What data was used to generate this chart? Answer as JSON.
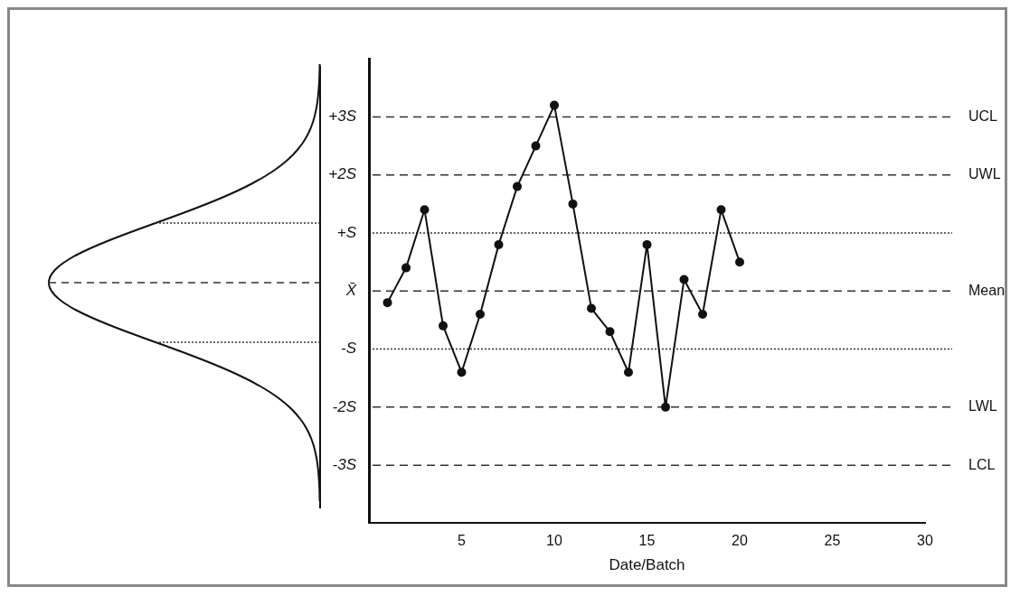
{
  "chart_data": {
    "type": "line",
    "xlabel": "Date/Batch",
    "x": [
      1,
      2,
      3,
      4,
      5,
      6,
      7,
      8,
      9,
      10,
      11,
      12,
      13,
      14,
      15,
      16,
      17,
      18,
      19,
      20
    ],
    "series": [
      {
        "color": "#111111",
        "values": [
          -0.2,
          0.4,
          1.4,
          -0.6,
          -1.4,
          -0.4,
          0.8,
          1.8,
          2.5,
          3.2,
          1.5,
          -0.3,
          -0.7,
          -1.4,
          0.8,
          -2.0,
          0.2,
          -0.4,
          1.4,
          0.5
        ]
      }
    ],
    "marker": "circle",
    "line_style": "solid",
    "grid": false,
    "legend": false,
    "xlim": [
      0,
      30
    ],
    "xticks": [
      5,
      10,
      15,
      20,
      25,
      30
    ],
    "ylim": [
      -4,
      4
    ],
    "yticks": [
      {
        "value": -3,
        "label": "-3S"
      },
      {
        "value": -2,
        "label": "-2S"
      },
      {
        "value": -1,
        "label": "-S"
      },
      {
        "value": 0,
        "label": "X̄"
      },
      {
        "value": 1,
        "label": "+S"
      },
      {
        "value": 2,
        "label": "+2S"
      },
      {
        "value": 3,
        "label": "+3S"
      }
    ],
    "ref_lines": [
      {
        "axis": "y",
        "value": 3,
        "label": "UCL",
        "line_style": "dashed"
      },
      {
        "axis": "y",
        "value": 2,
        "label": "UWL",
        "line_style": "dashed"
      },
      {
        "axis": "y",
        "value": 1,
        "label": null,
        "line_style": "dotted"
      },
      {
        "axis": "y",
        "value": 0,
        "label": "Mean",
        "line_style": "dashed"
      },
      {
        "axis": "y",
        "value": -1,
        "label": null,
        "line_style": "dotted"
      },
      {
        "axis": "y",
        "value": -2,
        "label": "LWL",
        "line_style": "dashed"
      },
      {
        "axis": "y",
        "value": -3,
        "label": "LCL",
        "line_style": "dashed"
      }
    ]
  }
}
